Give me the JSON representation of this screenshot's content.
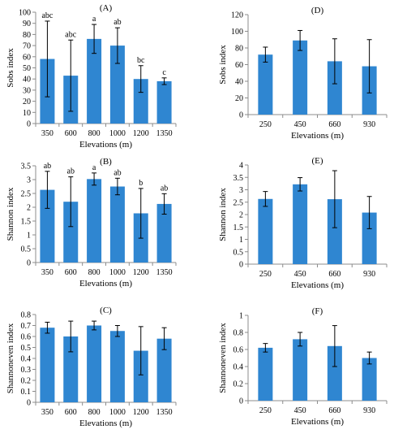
{
  "colors": {
    "bar": "#2f86d1",
    "axis": "#8c8c8c",
    "error": "#000000",
    "text": "#000000"
  },
  "chart_data": [
    {
      "id": "A",
      "type": "bar",
      "panel_label": "(A)",
      "categories": [
        "350",
        "600",
        "800",
        "1000",
        "1200",
        "1350"
      ],
      "values": [
        58,
        43,
        76,
        70,
        40,
        38
      ],
      "errors": [
        34,
        32,
        13,
        16,
        12,
        3
      ],
      "letters": [
        "abc",
        "abc",
        "a",
        "ab",
        "bc",
        "c"
      ],
      "ylim": [
        0,
        100
      ],
      "yticks": [
        0,
        10,
        20,
        30,
        40,
        50,
        60,
        70,
        80,
        90,
        100
      ],
      "ylabel": "Sobs index",
      "xlabel": "Elevations (m)"
    },
    {
      "id": "D",
      "type": "bar",
      "panel_label": "(D)",
      "categories": [
        "250",
        "450",
        "660",
        "930"
      ],
      "values": [
        72,
        89,
        64,
        58
      ],
      "errors": [
        9,
        12,
        27,
        32
      ],
      "letters": [],
      "ylim": [
        0,
        120
      ],
      "yticks": [
        0,
        20,
        40,
        60,
        80,
        100,
        120
      ],
      "ylabel": "Sobs index",
      "xlabel": "Elevations (m)"
    },
    {
      "id": "B",
      "type": "bar",
      "panel_label": "(B)",
      "categories": [
        "350",
        "600",
        "800",
        "1000",
        "1200",
        "1350"
      ],
      "values": [
        2.63,
        2.2,
        3.02,
        2.75,
        1.78,
        2.12
      ],
      "errors": [
        0.67,
        0.9,
        0.22,
        0.3,
        0.9,
        0.37
      ],
      "letters": [
        "ab",
        "ab",
        "a",
        "ab",
        "b",
        "ab"
      ],
      "ylim": [
        0,
        3.5
      ],
      "yticks": [
        0,
        0.5,
        1,
        1.5,
        2,
        2.5,
        3,
        3.5
      ],
      "ylabel": "Shannon index",
      "xlabel": "Elevations (m)"
    },
    {
      "id": "E",
      "type": "bar",
      "panel_label": "(E)",
      "categories": [
        "250",
        "450",
        "660",
        "930"
      ],
      "values": [
        2.63,
        3.22,
        2.62,
        2.08
      ],
      "errors": [
        0.3,
        0.27,
        1.15,
        0.65
      ],
      "letters": [],
      "ylim": [
        0,
        4
      ],
      "yticks": [
        0,
        0.5,
        1,
        1.5,
        2,
        2.5,
        3,
        3.5,
        4
      ],
      "ylabel": "Shannon index",
      "xlabel": "Elevations (m)"
    },
    {
      "id": "C",
      "type": "bar",
      "panel_label": "(C)",
      "categories": [
        "350",
        "600",
        "800",
        "1000",
        "1200",
        "1350"
      ],
      "values": [
        0.68,
        0.6,
        0.7,
        0.65,
        0.47,
        0.58
      ],
      "errors": [
        0.05,
        0.14,
        0.04,
        0.05,
        0.22,
        0.1
      ],
      "letters": [],
      "ylim": [
        0,
        0.8
      ],
      "yticks": [
        0,
        0.1,
        0.2,
        0.3,
        0.4,
        0.5,
        0.6,
        0.7,
        0.8
      ],
      "ylabel": "Shannoneven index",
      "xlabel": "Elevations (m)"
    },
    {
      "id": "F",
      "type": "bar",
      "panel_label": "(F)",
      "categories": [
        "250",
        "450",
        "660",
        "930"
      ],
      "values": [
        0.62,
        0.72,
        0.64,
        0.5
      ],
      "errors": [
        0.05,
        0.08,
        0.24,
        0.07
      ],
      "letters": [],
      "ylim": [
        0,
        1
      ],
      "yticks": [
        0,
        0.2,
        0.4,
        0.6,
        0.8,
        1
      ],
      "ylabel": "Shannoneven index",
      "xlabel": "Elevations (m)"
    }
  ]
}
